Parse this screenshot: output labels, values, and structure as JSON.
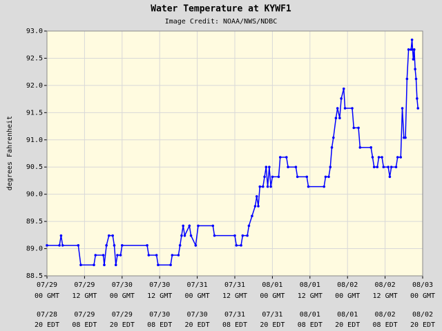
{
  "chart_data": {
    "type": "line",
    "title": "Water Temperature at KYWF1",
    "subtitle": "Image Credit: NOAA/NWS/NDBC",
    "y_label": "degrees Fahrenheit",
    "color": "#0000ff",
    "grid": true,
    "xlim": [
      0,
      120
    ],
    "ylim": [
      88.5,
      93.0
    ],
    "yticks": [
      88.5,
      {
        "value": 89,
        "label": "89.0"
      },
      89.5,
      {
        "value": 90,
        "label": "90.0"
      },
      90.5,
      {
        "value": 91,
        "label": "91.0"
      },
      91.5,
      {
        "value": 92,
        "label": "92.0"
      },
      92.5,
      {
        "value": 93,
        "label": "93.0"
      }
    ],
    "xticks": [
      {
        "value": 0,
        "label": "07/29"
      },
      {
        "value": 12,
        "label": "07/29"
      },
      {
        "value": 24,
        "label": "07/30"
      },
      {
        "value": 36,
        "label": "07/30"
      },
      {
        "value": 48,
        "label": "07/31"
      },
      {
        "value": 60,
        "label": "07/31"
      },
      {
        "value": 72,
        "label": "08/01"
      },
      {
        "value": 84,
        "label": "08/01"
      },
      {
        "value": 96,
        "label": "08/02"
      },
      {
        "value": 108,
        "label": "08/02"
      },
      {
        "value": 120,
        "label": "08/03"
      }
    ],
    "xtick_times": [
      "00 GMT",
      "12 GMT",
      "00 GMT",
      "12 GMT",
      "00 GMT",
      "12 GMT",
      "00 GMT",
      "12 GMT",
      "00 GMT",
      "12 GMT",
      "00 GMT"
    ],
    "edt_dates": [
      "07/28",
      "07/29",
      "07/29",
      "07/30",
      "07/30",
      "07/31",
      "07/31",
      "08/01",
      "08/01",
      "08/02",
      "08/02"
    ],
    "edt_times": [
      "20 EDT",
      "08 EDT",
      "20 EDT",
      "08 EDT",
      "20 EDT",
      "08 EDT",
      "20 EDT",
      "08 EDT",
      "20 EDT",
      "08 EDT",
      "20 EDT"
    ],
    "x": [
      0,
      4,
      4.5,
      5,
      10,
      10.8,
      15,
      15.5,
      18,
      18.3,
      19,
      19.8,
      21,
      21.5,
      22,
      22.5,
      23.5,
      24,
      32,
      32.5,
      35,
      35.5,
      39.5,
      40,
      42,
      42.5,
      43,
      43.5,
      44,
      45.5,
      46,
      47.5,
      48.3,
      53,
      53.5,
      60,
      60.5,
      62,
      62.5,
      64,
      64.5,
      65.5,
      66.5,
      67,
      67.5,
      68,
      69,
      69.5,
      70,
      70.5,
      71,
      71.5,
      72,
      74,
      74.5,
      76.5,
      77,
      79.5,
      80,
      83,
      83.5,
      88.5,
      89,
      90,
      90.5,
      91,
      91.5,
      92.3,
      92.8,
      93.5,
      94,
      94.8,
      95.2,
      97.5,
      98,
      99.5,
      100,
      103.5,
      104,
      104.5,
      105.5,
      106,
      107,
      107.5,
      109,
      109.5,
      110,
      111.5,
      112,
      113,
      113.5,
      114,
      114.5,
      115,
      115.5,
      116.3,
      116.6,
      117,
      117.3,
      117.6,
      117.9,
      118.2,
      118.5
    ],
    "values": [
      89.06,
      89.06,
      89.24,
      89.06,
      89.06,
      88.7,
      88.7,
      88.88,
      88.88,
      88.7,
      89.06,
      89.24,
      89.24,
      89.06,
      88.7,
      88.88,
      88.88,
      89.06,
      89.06,
      88.88,
      88.88,
      88.7,
      88.7,
      88.88,
      88.88,
      89.06,
      89.24,
      89.42,
      89.24,
      89.42,
      89.24,
      89.06,
      89.42,
      89.42,
      89.24,
      89.24,
      89.06,
      89.06,
      89.24,
      89.24,
      89.42,
      89.6,
      89.78,
      89.96,
      89.78,
      90.14,
      90.14,
      90.32,
      90.5,
      90.14,
      90.5,
      90.14,
      90.32,
      90.32,
      90.68,
      90.68,
      90.5,
      90.5,
      90.32,
      90.32,
      90.14,
      90.14,
      90.32,
      90.32,
      90.5,
      90.86,
      91.04,
      91.4,
      91.58,
      91.4,
      91.76,
      91.94,
      91.58,
      91.58,
      91.22,
      91.22,
      90.86,
      90.86,
      90.68,
      90.5,
      90.5,
      90.68,
      90.68,
      90.5,
      90.5,
      90.32,
      90.5,
      90.5,
      90.68,
      90.68,
      91.58,
      91.04,
      91.04,
      92.12,
      92.66,
      92.66,
      92.84,
      92.48,
      92.66,
      92.3,
      92.12,
      91.76,
      91.58
    ]
  }
}
